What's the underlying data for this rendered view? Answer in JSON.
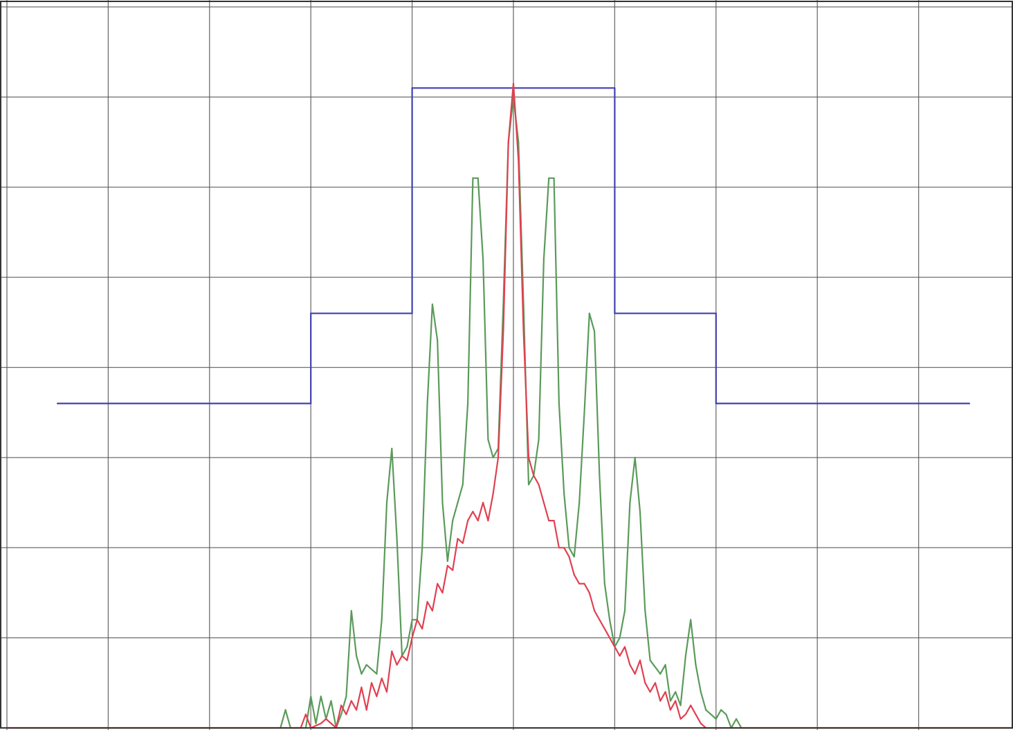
{
  "chart_data": {
    "type": "line",
    "title": "",
    "xlabel": "",
    "ylabel": "",
    "xlim": [
      -5,
      5
    ],
    "ylim": [
      0,
      8
    ],
    "grid": true,
    "legend": "none",
    "series": [
      {
        "color": "#4040b0",
        "points": [
          [
            -4.5,
            3.6
          ],
          [
            -2.0,
            3.6
          ],
          [
            -2.0,
            4.6
          ],
          [
            -1.0,
            4.6
          ],
          [
            -1.0,
            7.1
          ],
          [
            1.0,
            7.1
          ],
          [
            1.0,
            4.6
          ],
          [
            2.0,
            4.6
          ],
          [
            2.0,
            3.6
          ],
          [
            4.5,
            3.6
          ]
        ]
      },
      {
        "color": "#5a9a5a",
        "points": [
          [
            -5.0,
            0.0
          ],
          [
            -2.3,
            0.0
          ],
          [
            -2.25,
            0.2
          ],
          [
            -2.2,
            0.0
          ],
          [
            -2.05,
            0.0
          ],
          [
            -2.0,
            0.35
          ],
          [
            -1.95,
            0.05
          ],
          [
            -1.9,
            0.35
          ],
          [
            -1.85,
            0.1
          ],
          [
            -1.8,
            0.3
          ],
          [
            -1.75,
            0.0
          ],
          [
            -1.7,
            0.15
          ],
          [
            -1.65,
            0.35
          ],
          [
            -1.6,
            1.3
          ],
          [
            -1.55,
            0.8
          ],
          [
            -1.5,
            0.6
          ],
          [
            -1.45,
            0.7
          ],
          [
            -1.35,
            0.6
          ],
          [
            -1.3,
            1.2
          ],
          [
            -1.25,
            2.5
          ],
          [
            -1.2,
            3.1
          ],
          [
            -1.15,
            2.1
          ],
          [
            -1.1,
            0.8
          ],
          [
            -1.05,
            0.9
          ],
          [
            -1.0,
            1.2
          ],
          [
            -0.95,
            1.2
          ],
          [
            -0.9,
            2.0
          ],
          [
            -0.85,
            3.6
          ],
          [
            -0.8,
            4.7
          ],
          [
            -0.75,
            4.3
          ],
          [
            -0.7,
            2.5
          ],
          [
            -0.65,
            1.85
          ],
          [
            -0.6,
            2.3
          ],
          [
            -0.55,
            2.5
          ],
          [
            -0.5,
            2.7
          ],
          [
            -0.45,
            3.6
          ],
          [
            -0.4,
            6.1
          ],
          [
            -0.35,
            6.1
          ],
          [
            -0.3,
            5.2
          ],
          [
            -0.25,
            3.2
          ],
          [
            -0.2,
            3.0
          ],
          [
            -0.15,
            3.1
          ],
          [
            -0.1,
            4.7
          ],
          [
            -0.05,
            6.5
          ],
          [
            0.0,
            7.0
          ],
          [
            0.05,
            6.5
          ],
          [
            0.1,
            4.7
          ],
          [
            0.15,
            2.7
          ],
          [
            0.2,
            2.8
          ],
          [
            0.25,
            3.2
          ],
          [
            0.3,
            5.2
          ],
          [
            0.35,
            6.1
          ],
          [
            0.4,
            6.1
          ],
          [
            0.45,
            3.6
          ],
          [
            0.5,
            2.6
          ],
          [
            0.55,
            2.0
          ],
          [
            0.6,
            1.9
          ],
          [
            0.65,
            2.5
          ],
          [
            0.7,
            3.5
          ],
          [
            0.75,
            4.6
          ],
          [
            0.8,
            4.4
          ],
          [
            0.85,
            2.8
          ],
          [
            0.9,
            1.6
          ],
          [
            0.95,
            1.2
          ],
          [
            1.0,
            0.9
          ],
          [
            1.05,
            1.0
          ],
          [
            1.1,
            1.3
          ],
          [
            1.15,
            2.5
          ],
          [
            1.2,
            3.0
          ],
          [
            1.25,
            2.4
          ],
          [
            1.3,
            1.3
          ],
          [
            1.35,
            0.75
          ],
          [
            1.45,
            0.6
          ],
          [
            1.5,
            0.7
          ],
          [
            1.55,
            0.3
          ],
          [
            1.6,
            0.4
          ],
          [
            1.65,
            0.25
          ],
          [
            1.7,
            0.8
          ],
          [
            1.75,
            1.2
          ],
          [
            1.8,
            0.7
          ],
          [
            1.85,
            0.4
          ],
          [
            1.9,
            0.2
          ],
          [
            1.95,
            0.15
          ],
          [
            2.0,
            0.1
          ],
          [
            2.05,
            0.2
          ],
          [
            2.1,
            0.15
          ],
          [
            2.15,
            0.0
          ],
          [
            2.2,
            0.1
          ],
          [
            2.25,
            0.0
          ],
          [
            5.0,
            0.0
          ]
        ]
      },
      {
        "color": "#e04050",
        "points": [
          [
            -5.0,
            0.0
          ],
          [
            -2.1,
            0.0
          ],
          [
            -2.05,
            0.15
          ],
          [
            -2.0,
            0.0
          ],
          [
            -1.9,
            0.05
          ],
          [
            -1.85,
            0.1
          ],
          [
            -1.8,
            0.05
          ],
          [
            -1.75,
            0.0
          ],
          [
            -1.7,
            0.25
          ],
          [
            -1.65,
            0.15
          ],
          [
            -1.6,
            0.3
          ],
          [
            -1.55,
            0.2
          ],
          [
            -1.5,
            0.45
          ],
          [
            -1.45,
            0.2
          ],
          [
            -1.4,
            0.5
          ],
          [
            -1.35,
            0.35
          ],
          [
            -1.3,
            0.55
          ],
          [
            -1.25,
            0.4
          ],
          [
            -1.2,
            0.85
          ],
          [
            -1.15,
            0.7
          ],
          [
            -1.1,
            0.8
          ],
          [
            -1.05,
            0.75
          ],
          [
            -1.0,
            1.0
          ],
          [
            -0.95,
            1.2
          ],
          [
            -0.9,
            1.1
          ],
          [
            -0.85,
            1.4
          ],
          [
            -0.8,
            1.3
          ],
          [
            -0.75,
            1.6
          ],
          [
            -0.7,
            1.5
          ],
          [
            -0.65,
            1.8
          ],
          [
            -0.6,
            1.75
          ],
          [
            -0.55,
            2.1
          ],
          [
            -0.5,
            2.05
          ],
          [
            -0.45,
            2.3
          ],
          [
            -0.4,
            2.4
          ],
          [
            -0.35,
            2.3
          ],
          [
            -0.3,
            2.5
          ],
          [
            -0.25,
            2.3
          ],
          [
            -0.2,
            2.6
          ],
          [
            -0.15,
            3.0
          ],
          [
            -0.1,
            4.4
          ],
          [
            -0.05,
            6.5
          ],
          [
            0.0,
            7.15
          ],
          [
            0.05,
            6.3
          ],
          [
            0.1,
            4.4
          ],
          [
            0.15,
            3.0
          ],
          [
            0.2,
            2.8
          ],
          [
            0.25,
            2.7
          ],
          [
            0.3,
            2.5
          ],
          [
            0.35,
            2.3
          ],
          [
            0.4,
            2.3
          ],
          [
            0.45,
            2.0
          ],
          [
            0.5,
            2.0
          ],
          [
            0.55,
            1.9
          ],
          [
            0.6,
            1.7
          ],
          [
            0.65,
            1.6
          ],
          [
            0.7,
            1.6
          ],
          [
            0.75,
            1.5
          ],
          [
            0.8,
            1.3
          ],
          [
            0.85,
            1.2
          ],
          [
            0.9,
            1.1
          ],
          [
            0.95,
            1.0
          ],
          [
            1.0,
            0.9
          ],
          [
            1.05,
            0.8
          ],
          [
            1.1,
            0.9
          ],
          [
            1.15,
            0.7
          ],
          [
            1.2,
            0.6
          ],
          [
            1.25,
            0.75
          ],
          [
            1.3,
            0.5
          ],
          [
            1.35,
            0.4
          ],
          [
            1.4,
            0.5
          ],
          [
            1.45,
            0.3
          ],
          [
            1.5,
            0.4
          ],
          [
            1.55,
            0.2
          ],
          [
            1.6,
            0.3
          ],
          [
            1.65,
            0.1
          ],
          [
            1.7,
            0.15
          ],
          [
            1.75,
            0.25
          ],
          [
            1.8,
            0.15
          ],
          [
            1.85,
            0.05
          ],
          [
            1.9,
            0.0
          ],
          [
            5.0,
            0.0
          ]
        ]
      }
    ]
  }
}
